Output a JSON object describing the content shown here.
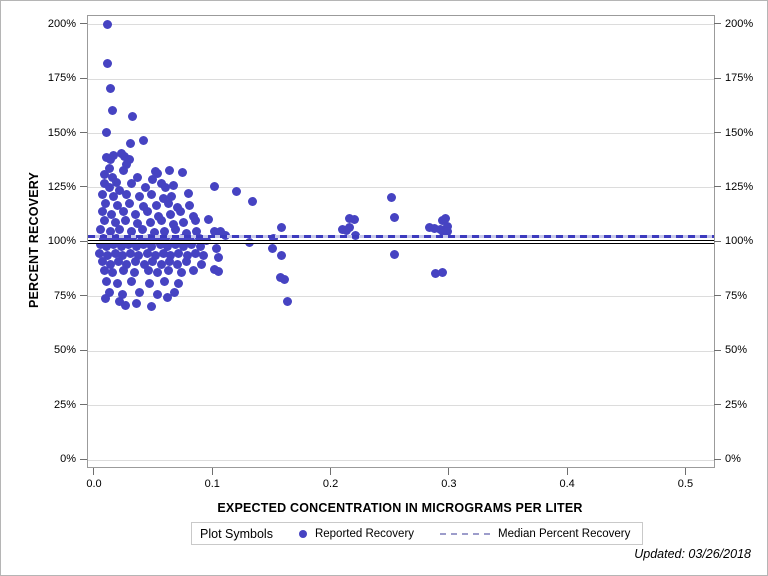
{
  "figure": {
    "footnote": "Updated: 03/26/2018"
  },
  "legend": {
    "title": "Plot Symbols",
    "items": [
      {
        "label": "Reported Recovery",
        "marker": "dot",
        "color": "#4643c2"
      },
      {
        "label": "Median Percent Recovery",
        "marker": "dashed-line",
        "color": "#9d9dcb"
      }
    ]
  },
  "chart_data": {
    "type": "scatter",
    "title": "",
    "xlabel": "EXPECTED CONCENTRATION IN MICROGRAMS PER LITER",
    "ylabel": "PERCENT RECOVERY",
    "xlim": [
      -0.0059,
      0.5233
    ],
    "ylim": [
      -3.2,
      204.0
    ],
    "grid": true,
    "legend_position": "bottom",
    "xticks": [
      0.0,
      0.1,
      0.2,
      0.3,
      0.4,
      0.5
    ],
    "xtick_labels": [
      "0.0",
      "0.1",
      "0.2",
      "0.3",
      "0.4",
      "0.5"
    ],
    "yticks": [
      0,
      25,
      50,
      75,
      100,
      125,
      150,
      175,
      200
    ],
    "ytick_labels": [
      "0%",
      "25%",
      "50%",
      "75%",
      "100%",
      "125%",
      "150%",
      "175%",
      "200%"
    ],
    "point_color": "#4643c2",
    "grid_color": "#dcdcdc",
    "reference_lines": [
      {
        "name": "100-percent-reference",
        "value": 100,
        "style": "double-black",
        "color": "#000000"
      },
      {
        "name": "median-percent-recovery",
        "value": 102.5,
        "style": "dashed-blue",
        "color": "#3c3abe"
      }
    ],
    "series": [
      {
        "name": "Reported Recovery",
        "color": "#4643c2",
        "points": [
          [
            0.011,
            200
          ],
          [
            0.011,
            182
          ],
          [
            0.013,
            170.5
          ],
          [
            0.015,
            160.5
          ],
          [
            0.032,
            158
          ],
          [
            0.01,
            150.5
          ],
          [
            0.03,
            145.5
          ],
          [
            0.041,
            147
          ],
          [
            0.025,
            139.5
          ],
          [
            0.01,
            139
          ],
          [
            0.013,
            138
          ],
          [
            0.016,
            140
          ],
          [
            0.022,
            141
          ],
          [
            0.029,
            138
          ],
          [
            0.027,
            136
          ],
          [
            0.012,
            134
          ],
          [
            0.024,
            133
          ],
          [
            0.051,
            132.5
          ],
          [
            0.063,
            133
          ],
          [
            0.074,
            132
          ],
          [
            0.036,
            130
          ],
          [
            0.008,
            131
          ],
          [
            0.015,
            130
          ],
          [
            0.053,
            131.5
          ],
          [
            0.008,
            127
          ],
          [
            0.018,
            127.5
          ],
          [
            0.031,
            127
          ],
          [
            0.049,
            129
          ],
          [
            0.056,
            127
          ],
          [
            0.012,
            125
          ],
          [
            0.021,
            124
          ],
          [
            0.043,
            125
          ],
          [
            0.06,
            125
          ],
          [
            0.066,
            126
          ],
          [
            0.101,
            125.5
          ],
          [
            0.12,
            123.5
          ],
          [
            0.006,
            122
          ],
          [
            0.016,
            121
          ],
          [
            0.027,
            122
          ],
          [
            0.038,
            121
          ],
          [
            0.048,
            122
          ],
          [
            0.058,
            120
          ],
          [
            0.065,
            121
          ],
          [
            0.079,
            122.5
          ],
          [
            0.133,
            119
          ],
          [
            0.251,
            120.5
          ],
          [
            0.009,
            118
          ],
          [
            0.019,
            117
          ],
          [
            0.029,
            118
          ],
          [
            0.041,
            116.5
          ],
          [
            0.052,
            117
          ],
          [
            0.062,
            118
          ],
          [
            0.07,
            116
          ],
          [
            0.08,
            117
          ],
          [
            0.006,
            114
          ],
          [
            0.014,
            113
          ],
          [
            0.024,
            114
          ],
          [
            0.034,
            113
          ],
          [
            0.044,
            114
          ],
          [
            0.054,
            112
          ],
          [
            0.064,
            113
          ],
          [
            0.072,
            114
          ],
          [
            0.083,
            112
          ],
          [
            0.096,
            110.5
          ],
          [
            0.253,
            111.5
          ],
          [
            0.294,
            110
          ],
          [
            0.296,
            111
          ],
          [
            0.008,
            110
          ],
          [
            0.017,
            109
          ],
          [
            0.026,
            110
          ],
          [
            0.036,
            108.5
          ],
          [
            0.047,
            109
          ],
          [
            0.056,
            110
          ],
          [
            0.066,
            108
          ],
          [
            0.075,
            109
          ],
          [
            0.085,
            110
          ],
          [
            0.215,
            111
          ],
          [
            0.219,
            110.5
          ],
          [
            0.283,
            107
          ],
          [
            0.287,
            106.5
          ],
          [
            0.005,
            106
          ],
          [
            0.013,
            105
          ],
          [
            0.021,
            106
          ],
          [
            0.031,
            105
          ],
          [
            0.04,
            106
          ],
          [
            0.05,
            104.5
          ],
          [
            0.059,
            105
          ],
          [
            0.068,
            106
          ],
          [
            0.077,
            104
          ],
          [
            0.086,
            105
          ],
          [
            0.101,
            105
          ],
          [
            0.106,
            105
          ],
          [
            0.158,
            107
          ],
          [
            0.209,
            106
          ],
          [
            0.213,
            105.5
          ],
          [
            0.215,
            107
          ],
          [
            0.292,
            106
          ],
          [
            0.295,
            104.5
          ],
          [
            0.298,
            107.5
          ],
          [
            0.007,
            102
          ],
          [
            0.012,
            101
          ],
          [
            0.018,
            102
          ],
          [
            0.025,
            101
          ],
          [
            0.032,
            102
          ],
          [
            0.039,
            101
          ],
          [
            0.046,
            102
          ],
          [
            0.053,
            101
          ],
          [
            0.06,
            102
          ],
          [
            0.067,
            101
          ],
          [
            0.074,
            102
          ],
          [
            0.081,
            101
          ],
          [
            0.088,
            102
          ],
          [
            0.094,
            101
          ],
          [
            0.11,
            103
          ],
          [
            0.131,
            100
          ],
          [
            0.151,
            102
          ],
          [
            0.22,
            103
          ],
          [
            0.298,
            105
          ],
          [
            0.005,
            99
          ],
          [
            0.01,
            98
          ],
          [
            0.016,
            99
          ],
          [
            0.022,
            98
          ],
          [
            0.028,
            99
          ],
          [
            0.035,
            98
          ],
          [
            0.041,
            99
          ],
          [
            0.048,
            98
          ],
          [
            0.055,
            99
          ],
          [
            0.061,
            98
          ],
          [
            0.068,
            99
          ],
          [
            0.075,
            98
          ],
          [
            0.082,
            99
          ],
          [
            0.089,
            98
          ],
          [
            0.103,
            97
          ],
          [
            0.15,
            97
          ],
          [
            0.004,
            95
          ],
          [
            0.011,
            94
          ],
          [
            0.017,
            95
          ],
          [
            0.023,
            94
          ],
          [
            0.03,
            95
          ],
          [
            0.037,
            94
          ],
          [
            0.044,
            95
          ],
          [
            0.051,
            94
          ],
          [
            0.058,
            95
          ],
          [
            0.064,
            94
          ],
          [
            0.071,
            95
          ],
          [
            0.078,
            94
          ],
          [
            0.085,
            95
          ],
          [
            0.092,
            94
          ],
          [
            0.104,
            93
          ],
          [
            0.158,
            94
          ],
          [
            0.253,
            94.5
          ],
          [
            0.006,
            91
          ],
          [
            0.013,
            90
          ],
          [
            0.02,
            91
          ],
          [
            0.027,
            90
          ],
          [
            0.034,
            91
          ],
          [
            0.042,
            90
          ],
          [
            0.049,
            91
          ],
          [
            0.056,
            90
          ],
          [
            0.063,
            91
          ],
          [
            0.07,
            90
          ],
          [
            0.077,
            91
          ],
          [
            0.09,
            90
          ],
          [
            0.101,
            87.5
          ],
          [
            0.104,
            86.5
          ],
          [
            0.008,
            87
          ],
          [
            0.015,
            86
          ],
          [
            0.024,
            87
          ],
          [
            0.033,
            86
          ],
          [
            0.045,
            87
          ],
          [
            0.053,
            86
          ],
          [
            0.062,
            87
          ],
          [
            0.073,
            86
          ],
          [
            0.083,
            87
          ],
          [
            0.288,
            85.5
          ],
          [
            0.294,
            86
          ],
          [
            0.01,
            82
          ],
          [
            0.019,
            81
          ],
          [
            0.031,
            82
          ],
          [
            0.046,
            81
          ],
          [
            0.059,
            82
          ],
          [
            0.071,
            81
          ],
          [
            0.157,
            84
          ],
          [
            0.16,
            83
          ],
          [
            0.012,
            77
          ],
          [
            0.023,
            76
          ],
          [
            0.038,
            77
          ],
          [
            0.053,
            76
          ],
          [
            0.067,
            77
          ],
          [
            0.009,
            74
          ],
          [
            0.061,
            74.5
          ],
          [
            0.021,
            73
          ],
          [
            0.035,
            72
          ],
          [
            0.026,
            71
          ],
          [
            0.048,
            70.5
          ],
          [
            0.163,
            73
          ]
        ]
      }
    ]
  }
}
